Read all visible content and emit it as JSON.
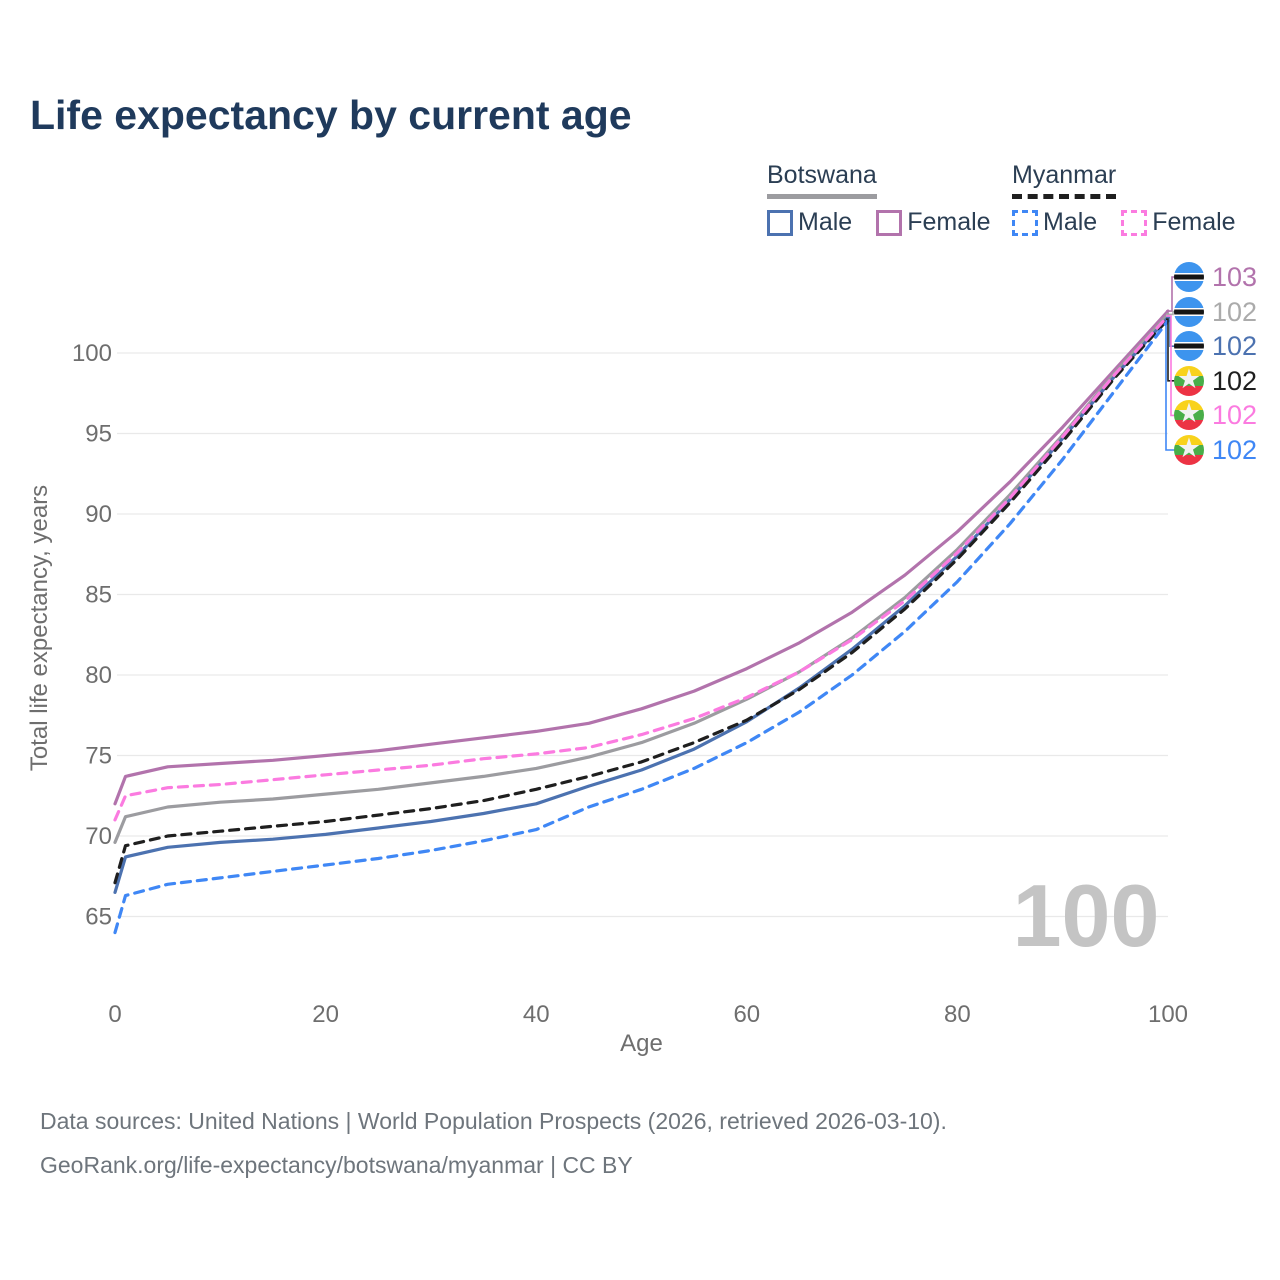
{
  "title": "Life expectancy by current age",
  "legend": {
    "groups": [
      {
        "label": "Botswana",
        "underline_style": "solid",
        "underline_color": "#9c9ca0",
        "items": [
          {
            "label": "Male",
            "color": "#4c72b0",
            "dashed": false
          },
          {
            "label": "Female",
            "color": "#b273ac",
            "dashed": false
          }
        ]
      },
      {
        "label": "Myanmar",
        "underline_style": "dashed",
        "underline_color": "#1f1f1f",
        "items": [
          {
            "label": "Male",
            "color": "#3f87f5",
            "dashed": true
          },
          {
            "label": "Female",
            "color": "#fb7be0",
            "dashed": true
          }
        ]
      }
    ]
  },
  "end_labels": [
    {
      "value": "103",
      "color": "#b273ac",
      "flag": "botswana",
      "series": "Botswana Female"
    },
    {
      "value": "102",
      "color": "#ababab",
      "flag": "botswana",
      "series": "Botswana"
    },
    {
      "value": "102",
      "color": "#4c72b0",
      "flag": "botswana",
      "series": "Botswana Male"
    },
    {
      "value": "102",
      "color": "#1f1f1f",
      "flag": "myanmar",
      "series": "Myanmar"
    },
    {
      "value": "102",
      "color": "#fb7be0",
      "flag": "myanmar",
      "series": "Myanmar Female"
    },
    {
      "value": "102",
      "color": "#3f87f5",
      "flag": "myanmar",
      "series": "Myanmar Male"
    }
  ],
  "watermark": "100",
  "footer": {
    "line1": "Data sources: United Nations | World Population Prospects (2026, retrieved 2026-03-10).",
    "line2": "GeoRank.org/life-expectancy/botswana/myanmar | CC BY"
  },
  "chart_data": {
    "type": "line",
    "title": "Life expectancy by current age",
    "xlabel": "Age",
    "ylabel": "Total life expectancy, years",
    "xlim": [
      0,
      100
    ],
    "ylim": [
      62.5,
      104
    ],
    "xticks": [
      0,
      20,
      40,
      60,
      80,
      100
    ],
    "yticks": [
      65,
      70,
      75,
      80,
      85,
      90,
      95,
      100
    ],
    "grid": "horizontal",
    "legend_position": "top-right",
    "x": [
      0,
      1,
      5,
      10,
      15,
      20,
      25,
      30,
      35,
      40,
      45,
      50,
      55,
      60,
      65,
      70,
      75,
      80,
      85,
      90,
      95,
      100
    ],
    "series": [
      {
        "name": "Botswana Female",
        "color": "#b273ac",
        "dash": null,
        "values": [
          72.0,
          73.7,
          74.3,
          74.5,
          74.7,
          75.0,
          75.3,
          75.7,
          76.1,
          76.5,
          77.0,
          77.9,
          79.0,
          80.4,
          82.0,
          83.9,
          86.2,
          88.9,
          92.0,
          95.4,
          99.0,
          102.6
        ]
      },
      {
        "name": "Botswana",
        "color": "#9c9ca0",
        "dash": null,
        "values": [
          69.6,
          71.2,
          71.8,
          72.1,
          72.3,
          72.6,
          72.9,
          73.3,
          73.7,
          74.2,
          74.9,
          75.8,
          77.0,
          78.5,
          80.2,
          82.3,
          84.8,
          87.8,
          91.2,
          94.9,
          98.8,
          102.4
        ]
      },
      {
        "name": "Botswana Male",
        "color": "#4c72b0",
        "dash": null,
        "values": [
          66.5,
          68.7,
          69.3,
          69.6,
          69.8,
          70.1,
          70.5,
          70.9,
          71.4,
          72.0,
          73.1,
          74.1,
          75.4,
          77.1,
          79.2,
          81.6,
          84.3,
          87.4,
          90.9,
          94.7,
          98.6,
          102.2
        ]
      },
      {
        "name": "Myanmar",
        "color": "#1f1f1f",
        "dash": [
          9,
          7
        ],
        "values": [
          67.1,
          69.4,
          70.0,
          70.3,
          70.6,
          70.9,
          71.3,
          71.7,
          72.2,
          72.9,
          73.7,
          74.6,
          75.8,
          77.2,
          79.1,
          81.4,
          84.1,
          87.2,
          90.7,
          94.5,
          98.5,
          102.1
        ]
      },
      {
        "name": "Myanmar Female",
        "color": "#fb7be0",
        "dash": [
          9,
          7
        ],
        "values": [
          71.0,
          72.5,
          73.0,
          73.2,
          73.5,
          73.8,
          74.1,
          74.4,
          74.8,
          75.1,
          75.5,
          76.3,
          77.3,
          78.6,
          80.2,
          82.2,
          84.6,
          87.6,
          91.0,
          94.8,
          98.7,
          102.3
        ]
      },
      {
        "name": "Myanmar Male",
        "color": "#3f87f5",
        "dash": [
          9,
          7
        ],
        "values": [
          64.0,
          66.3,
          67.0,
          67.4,
          67.8,
          68.2,
          68.6,
          69.1,
          69.7,
          70.4,
          71.8,
          72.9,
          74.2,
          75.8,
          77.7,
          80.0,
          82.7,
          85.8,
          89.4,
          93.4,
          97.7,
          102.0
        ]
      }
    ]
  }
}
